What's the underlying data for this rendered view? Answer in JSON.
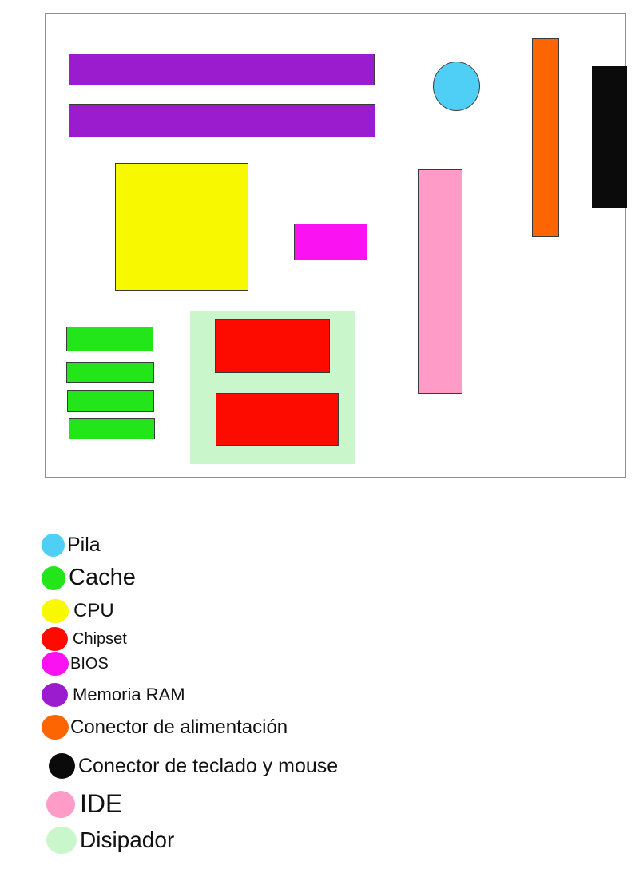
{
  "colors": {
    "pila": "#4fcff5",
    "cache": "#22e61a",
    "cpu": "#f8f800",
    "chipset": "#fd0a00",
    "bios": "#fb12f2",
    "memoria_ram": "#9b1bcf",
    "conector_alimentacion": "#fd6503",
    "conector_teclado_mouse": "#0b0b0b",
    "ide": "#fe9bc6",
    "disipador": "#c9f6ca"
  },
  "legend": [
    {
      "key": "pila",
      "label": "Pila"
    },
    {
      "key": "cache",
      "label": "Cache"
    },
    {
      "key": "cpu",
      "label": "CPU"
    },
    {
      "key": "chipset",
      "label": "Chipset"
    },
    {
      "key": "bios",
      "label": "BIOS"
    },
    {
      "key": "memoria_ram",
      "label": "Memoria RAM"
    },
    {
      "key": "conector_alimentacion",
      "label": "Conector de alimentación"
    },
    {
      "key": "conector_teclado_mouse",
      "label": "Conector de teclado y mouse"
    },
    {
      "key": "ide",
      "label": "IDE"
    },
    {
      "key": "disipador",
      "label": "Disipador"
    }
  ]
}
